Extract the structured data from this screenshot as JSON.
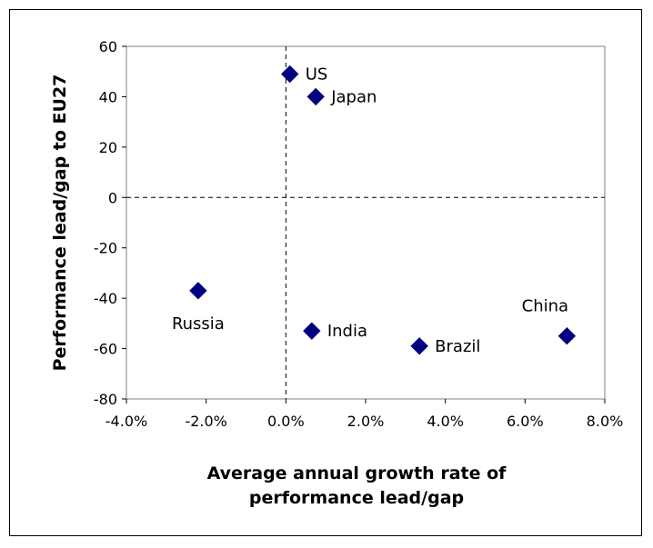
{
  "chart_data": {
    "type": "scatter",
    "title": "",
    "xlabel": [
      "Average annual growth rate of",
      "performance lead/gap"
    ],
    "ylabel": "Performance lead/gap to EU27",
    "xlim": [
      -0.04,
      0.08
    ],
    "ylim": [
      -80,
      60
    ],
    "x_ticks": [
      -0.04,
      -0.02,
      0.0,
      0.02,
      0.04,
      0.06,
      0.08
    ],
    "x_tick_labels": [
      "-4.0%",
      "-2.0%",
      "0.0%",
      "2.0%",
      "4.0%",
      "6.0%",
      "8.0%"
    ],
    "y_ticks": [
      60,
      40,
      20,
      0,
      -20,
      -40,
      -60,
      -80
    ],
    "y_tick_labels": [
      "60",
      "40",
      "20",
      "0",
      "-20",
      "-40",
      "-60",
      "-80"
    ],
    "grid": false,
    "reference_lines": {
      "x": 0,
      "y": 0,
      "style": "dashed"
    },
    "marker": {
      "shape": "diamond",
      "color": "#000080"
    },
    "points": [
      {
        "label": "US",
        "x": 0.001,
        "y": 49,
        "label_pos": "right"
      },
      {
        "label": "Japan",
        "x": 0.0075,
        "y": 40,
        "label_pos": "right"
      },
      {
        "label": "Russia",
        "x": -0.022,
        "y": -37,
        "label_pos": "below"
      },
      {
        "label": "India",
        "x": 0.0065,
        "y": -53,
        "label_pos": "right"
      },
      {
        "label": "Brazil",
        "x": 0.0335,
        "y": -59,
        "label_pos": "right"
      },
      {
        "label": "China",
        "x": 0.0705,
        "y": -55,
        "label_pos": "above-left"
      }
    ]
  }
}
